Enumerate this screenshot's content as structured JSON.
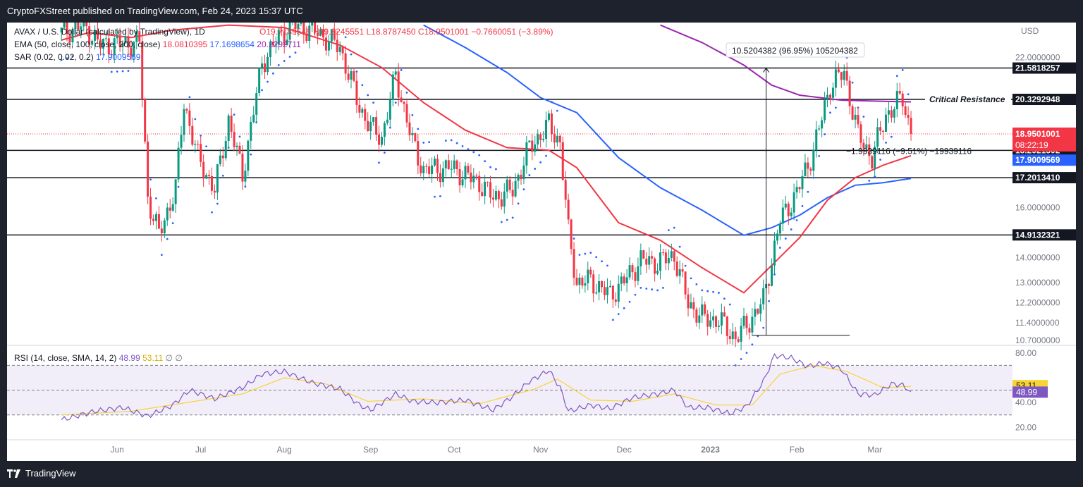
{
  "header": {
    "published": "CryptoFXStreet published on TradingView.com, Feb 24, 2023 15:37 UTC"
  },
  "footer": {
    "brand": "TradingView"
  },
  "legend": {
    "symbol": "AVAX / U.S. Dollar (calculated by TradingView), 1D",
    "ohlc_o": "O19.7189546",
    "ohlc_h": "H19.8245551",
    "ohlc_l": "L18.8787450",
    "ohlc_c": "C18.9501001",
    "ohlc_chg": "−0.7660051 (−3.89%)",
    "ema_label": "EMA (50, close, 100, close, 200, close)",
    "ema50": "18.0810395",
    "ema100": "17.1698654",
    "ema200": "20.2292711",
    "sar_label": "SAR (0.02, 0.02, 0.2)",
    "sar": "17.9009569"
  },
  "currency": "USD",
  "annotations": {
    "critical_resistance": "Critical Resistance",
    "measure_up": "10.5204382 (96.95%) 105204382",
    "measure_down": "−1.9939116 (−9.51%) −19939116"
  },
  "colors": {
    "up": "#089981",
    "down": "#f23645",
    "ema50": "#f23645",
    "ema100": "#2962ff",
    "ema200": "#9c27b0",
    "sar": "#2962ff",
    "rsi": "#7e57c2",
    "rsi_ma": "#f7d335"
  },
  "chart_data": {
    "type": "candlestick",
    "price_axis": {
      "min": 10.5,
      "max": 23.4,
      "ticks": [
        22.0,
        16.0,
        14.0,
        13.0,
        12.2,
        11.4,
        10.7
      ],
      "tick_labels": [
        "22.0000000",
        "16.0000000",
        "14.0000000",
        "13.0000000",
        "12.2000000",
        "11.4000000",
        "10.7000000"
      ]
    },
    "time_axis": {
      "labels": [
        "Jun",
        "Jul",
        "Aug",
        "Sep",
        "Oct",
        "Nov",
        "Dec",
        "2023",
        "Feb",
        "Mar"
      ],
      "days": [
        20,
        50,
        80,
        111,
        141,
        172,
        202,
        233,
        264,
        292
      ]
    },
    "horizontal_lines": [
      {
        "value": 21.5818257,
        "label": "21.5818257"
      },
      {
        "value": 20.3292948,
        "label": "20.3292948"
      },
      {
        "value": 18.2921502,
        "label": "18.2921502"
      },
      {
        "value": 17.201341,
        "label": "17.2013410"
      },
      {
        "value": 14.9132321,
        "label": "14.9132321"
      }
    ],
    "current_price": {
      "value": 18.9501001,
      "label": "18.9501001",
      "countdown": "08:22:19"
    },
    "sar_tag": {
      "value": 17.9009569,
      "label": "17.9009569"
    },
    "closes": [
      {
        "d": 0,
        "c": 23.0
      },
      {
        "d": 8,
        "c": 23.3
      },
      {
        "d": 14,
        "c": 22.5
      },
      {
        "d": 28,
        "c": 22.6
      },
      {
        "d": 31,
        "c": 16.4
      },
      {
        "d": 35,
        "c": 14.9
      },
      {
        "d": 41,
        "c": 16.8
      },
      {
        "d": 44,
        "c": 20.2
      },
      {
        "d": 49,
        "c": 18.0
      },
      {
        "d": 55,
        "c": 16.7
      },
      {
        "d": 60,
        "c": 19.5
      },
      {
        "d": 65,
        "c": 17.3
      },
      {
        "d": 72,
        "c": 21.8
      },
      {
        "d": 78,
        "c": 22.8
      },
      {
        "d": 84,
        "c": 23.3
      },
      {
        "d": 92,
        "c": 23.0
      },
      {
        "d": 100,
        "c": 22.4
      },
      {
        "d": 107,
        "c": 20.0
      },
      {
        "d": 111,
        "c": 19.2
      },
      {
        "d": 115,
        "c": 18.8
      },
      {
        "d": 120,
        "c": 21.3
      },
      {
        "d": 126,
        "c": 18.6
      },
      {
        "d": 130,
        "c": 17.5
      },
      {
        "d": 140,
        "c": 17.6
      },
      {
        "d": 150,
        "c": 17.0
      },
      {
        "d": 155,
        "c": 16.4
      },
      {
        "d": 162,
        "c": 16.7
      },
      {
        "d": 168,
        "c": 18.4
      },
      {
        "d": 175,
        "c": 19.3
      },
      {
        "d": 179,
        "c": 18.6
      },
      {
        "d": 182,
        "c": 15.0
      },
      {
        "d": 185,
        "c": 13.0
      },
      {
        "d": 190,
        "c": 13.1
      },
      {
        "d": 197,
        "c": 12.5
      },
      {
        "d": 203,
        "c": 13.2
      },
      {
        "d": 208,
        "c": 13.9
      },
      {
        "d": 214,
        "c": 13.8
      },
      {
        "d": 220,
        "c": 14.1
      },
      {
        "d": 225,
        "c": 12.2
      },
      {
        "d": 230,
        "c": 11.6
      },
      {
        "d": 236,
        "c": 11.5
      },
      {
        "d": 242,
        "c": 10.8
      },
      {
        "d": 246,
        "c": 11.3
      },
      {
        "d": 252,
        "c": 12.3
      },
      {
        "d": 258,
        "c": 15.5
      },
      {
        "d": 264,
        "c": 16.6
      },
      {
        "d": 270,
        "c": 18.3
      },
      {
        "d": 276,
        "c": 20.9
      },
      {
        "d": 281,
        "c": 21.4
      },
      {
        "d": 286,
        "c": 18.9
      },
      {
        "d": 291,
        "c": 18.0
      },
      {
        "d": 296,
        "c": 19.7
      },
      {
        "d": 302,
        "c": 20.4
      },
      {
        "d": 305,
        "c": 18.95
      }
    ],
    "ema50_line": [
      {
        "d": 0,
        "v": 22.7
      },
      {
        "d": 10,
        "v": 23.0
      },
      {
        "d": 25,
        "v": 22.8
      },
      {
        "d": 40,
        "v": 23.1
      },
      {
        "d": 60,
        "v": 23.3
      },
      {
        "d": 80,
        "v": 23.2
      },
      {
        "d": 100,
        "v": 22.5
      },
      {
        "d": 115,
        "v": 21.6
      },
      {
        "d": 130,
        "v": 20.2
      },
      {
        "d": 145,
        "v": 19.1
      },
      {
        "d": 160,
        "v": 18.4
      },
      {
        "d": 175,
        "v": 18.3
      },
      {
        "d": 185,
        "v": 17.6
      },
      {
        "d": 200,
        "v": 15.4
      },
      {
        "d": 215,
        "v": 14.7
      },
      {
        "d": 230,
        "v": 13.6
      },
      {
        "d": 245,
        "v": 12.6
      },
      {
        "d": 255,
        "v": 13.7
      },
      {
        "d": 265,
        "v": 14.8
      },
      {
        "d": 275,
        "v": 16.3
      },
      {
        "d": 285,
        "v": 17.2
      },
      {
        "d": 295,
        "v": 17.7
      },
      {
        "d": 305,
        "v": 18.08
      }
    ],
    "ema100_line": [
      {
        "d": 130,
        "v": 23.3
      },
      {
        "d": 145,
        "v": 22.4
      },
      {
        "d": 160,
        "v": 21.4
      },
      {
        "d": 172,
        "v": 20.4
      },
      {
        "d": 185,
        "v": 19.8
      },
      {
        "d": 200,
        "v": 18.0
      },
      {
        "d": 215,
        "v": 16.8
      },
      {
        "d": 230,
        "v": 15.9
      },
      {
        "d": 245,
        "v": 14.9
      },
      {
        "d": 255,
        "v": 15.2
      },
      {
        "d": 265,
        "v": 15.7
      },
      {
        "d": 275,
        "v": 16.4
      },
      {
        "d": 285,
        "v": 16.9
      },
      {
        "d": 295,
        "v": 17.0
      },
      {
        "d": 305,
        "v": 17.17
      }
    ],
    "ema200_line": [
      {
        "d": 215,
        "v": 23.3
      },
      {
        "d": 230,
        "v": 22.6
      },
      {
        "d": 245,
        "v": 21.7
      },
      {
        "d": 255,
        "v": 20.9
      },
      {
        "d": 265,
        "v": 20.5
      },
      {
        "d": 280,
        "v": 20.3
      },
      {
        "d": 295,
        "v": 20.25
      },
      {
        "d": 305,
        "v": 20.23
      }
    ],
    "rsi": {
      "label": "RSI (14, close, SMA, 14, 2)",
      "value": "48.99",
      "ma_value": "53.11",
      "axis": {
        "min": 10,
        "max": 85,
        "ticks": [
          80,
          40,
          20
        ],
        "tick_labels": [
          "80.00",
          "40.00",
          "20.00"
        ]
      },
      "bands": {
        "upper": 70,
        "middle": 50,
        "lower": 30
      },
      "values": [
        {
          "d": 0,
          "v": 26
        },
        {
          "d": 12,
          "v": 33
        },
        {
          "d": 22,
          "v": 36
        },
        {
          "d": 31,
          "v": 29
        },
        {
          "d": 40,
          "v": 38
        },
        {
          "d": 46,
          "v": 50
        },
        {
          "d": 55,
          "v": 43
        },
        {
          "d": 65,
          "v": 52
        },
        {
          "d": 72,
          "v": 63
        },
        {
          "d": 80,
          "v": 65
        },
        {
          "d": 90,
          "v": 56
        },
        {
          "d": 100,
          "v": 51
        },
        {
          "d": 107,
          "v": 38
        },
        {
          "d": 111,
          "v": 34
        },
        {
          "d": 120,
          "v": 47
        },
        {
          "d": 126,
          "v": 41
        },
        {
          "d": 135,
          "v": 40
        },
        {
          "d": 145,
          "v": 42
        },
        {
          "d": 155,
          "v": 34
        },
        {
          "d": 162,
          "v": 45
        },
        {
          "d": 168,
          "v": 57
        },
        {
          "d": 175,
          "v": 66
        },
        {
          "d": 179,
          "v": 52
        },
        {
          "d": 182,
          "v": 33
        },
        {
          "d": 190,
          "v": 38
        },
        {
          "d": 197,
          "v": 35
        },
        {
          "d": 205,
          "v": 44
        },
        {
          "d": 214,
          "v": 47
        },
        {
          "d": 220,
          "v": 50
        },
        {
          "d": 225,
          "v": 36
        },
        {
          "d": 232,
          "v": 36
        },
        {
          "d": 240,
          "v": 31
        },
        {
          "d": 246,
          "v": 37
        },
        {
          "d": 252,
          "v": 57
        },
        {
          "d": 256,
          "v": 78
        },
        {
          "d": 262,
          "v": 76
        },
        {
          "d": 268,
          "v": 69
        },
        {
          "d": 274,
          "v": 72
        },
        {
          "d": 280,
          "v": 67
        },
        {
          "d": 286,
          "v": 47
        },
        {
          "d": 292,
          "v": 46
        },
        {
          "d": 298,
          "v": 55
        },
        {
          "d": 302,
          "v": 54
        },
        {
          "d": 305,
          "v": 48.99
        }
      ],
      "ma_values": [
        {
          "d": 0,
          "v": 30
        },
        {
          "d": 25,
          "v": 33
        },
        {
          "d": 45,
          "v": 40
        },
        {
          "d": 65,
          "v": 47
        },
        {
          "d": 80,
          "v": 60
        },
        {
          "d": 95,
          "v": 55
        },
        {
          "d": 110,
          "v": 41
        },
        {
          "d": 130,
          "v": 43
        },
        {
          "d": 150,
          "v": 39
        },
        {
          "d": 170,
          "v": 51
        },
        {
          "d": 178,
          "v": 59
        },
        {
          "d": 190,
          "v": 42
        },
        {
          "d": 205,
          "v": 41
        },
        {
          "d": 220,
          "v": 47
        },
        {
          "d": 235,
          "v": 38
        },
        {
          "d": 248,
          "v": 38
        },
        {
          "d": 258,
          "v": 63
        },
        {
          "d": 270,
          "v": 70
        },
        {
          "d": 282,
          "v": 65
        },
        {
          "d": 295,
          "v": 52
        },
        {
          "d": 305,
          "v": 53.11
        }
      ]
    }
  }
}
